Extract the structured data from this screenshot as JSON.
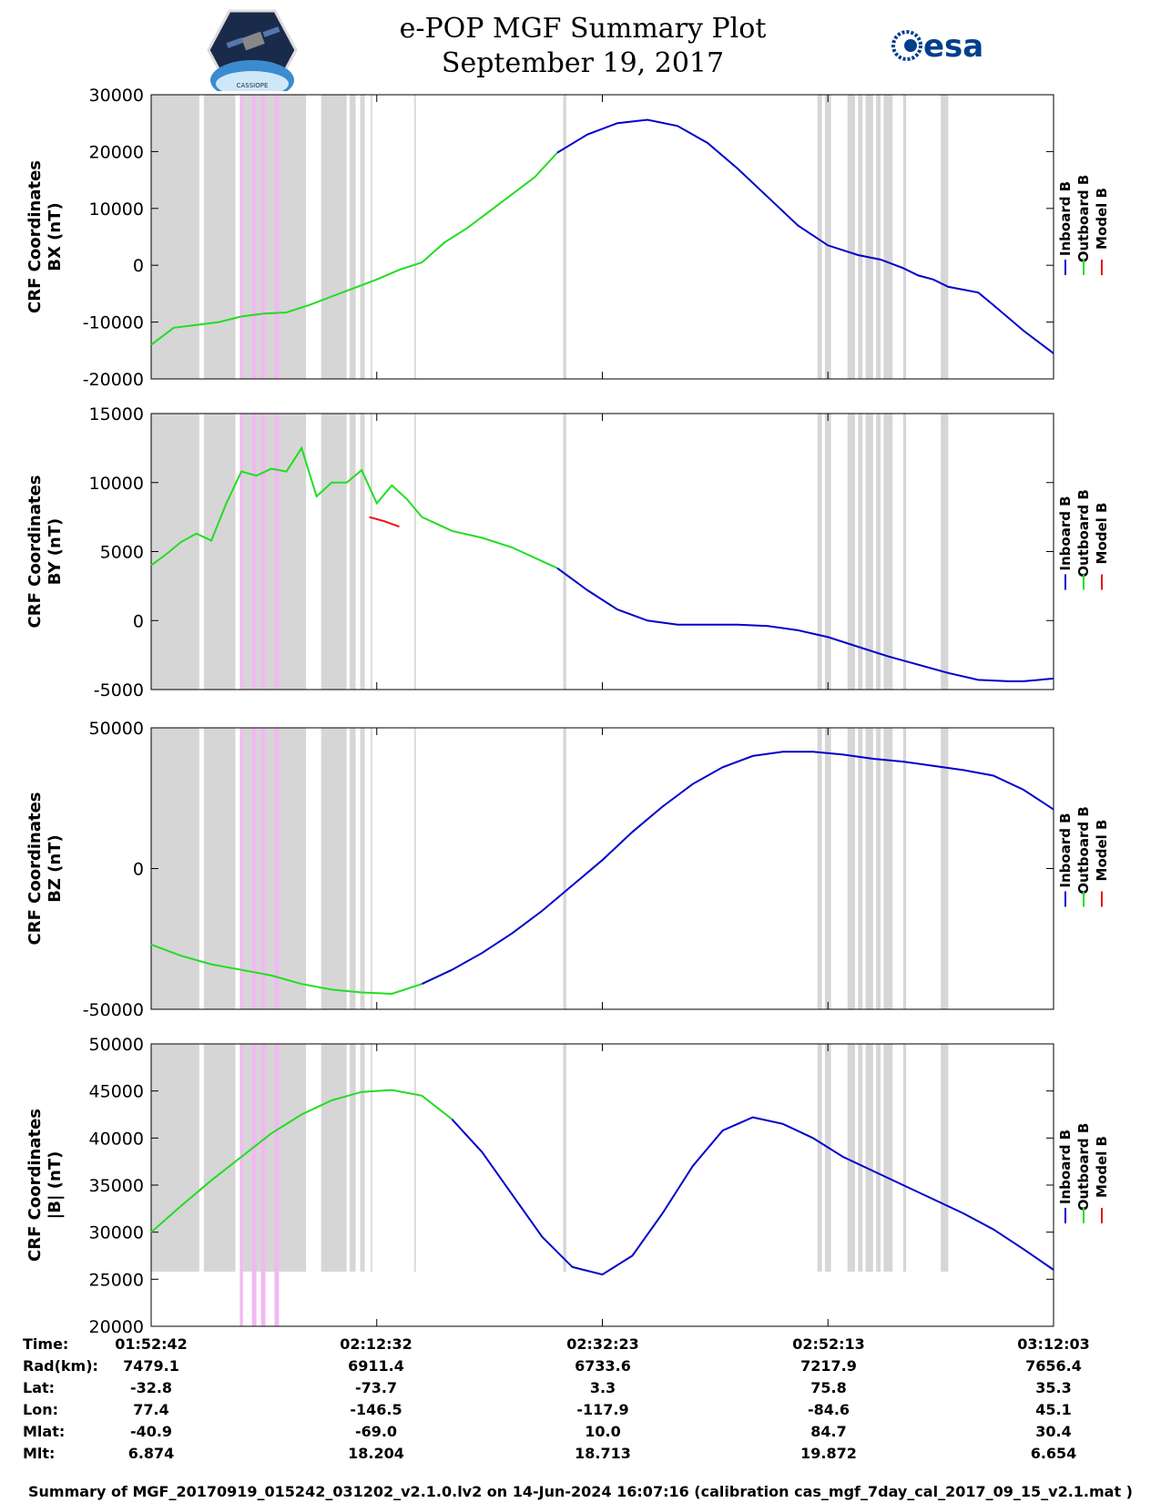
{
  "header": {
    "title": "e-POP MGF Summary Plot",
    "date": "September 19, 2017",
    "logo_left_text": "CASSIOPE",
    "logo_right_text": "esa"
  },
  "colors": {
    "inboard": "#0000cc",
    "outboard": "#22dd22",
    "model": "#ee1111",
    "gray_band": "#d6d6d6",
    "pink_band": "#f2b8f2"
  },
  "legend": [
    "Inboard B",
    "Outboard B",
    "Model B"
  ],
  "chart_data": [
    {
      "type": "line",
      "ylabel_line1": "CRF Coordinates",
      "ylabel_line2": "BX (nT)",
      "ylim": [
        -20000,
        30000
      ],
      "yticks": [
        -20000,
        -10000,
        0,
        10000,
        20000,
        30000
      ],
      "ytick_labels": [
        "-20000",
        "-10000",
        "0",
        "10000",
        "20000",
        "30000"
      ],
      "series": [
        {
          "name": "Outboard B",
          "color_key": "outboard",
          "x": [
            0,
            1.5,
            3,
            4.5,
            6,
            7.5,
            9,
            10.5,
            12,
            13.5,
            15,
            16.5,
            18,
            19.5,
            21,
            22.5,
            24,
            25.5,
            27
          ],
          "y": [
            -14000,
            -11000,
            -10500,
            -10000,
            -9000,
            -8500,
            -8300,
            -7000,
            -5500,
            -4000,
            -2500,
            -800,
            500,
            4000,
            6500,
            9500,
            12500,
            15500,
            19800
          ]
        },
        {
          "name": "Inboard B",
          "color_key": "inboard",
          "x": [
            27,
            29,
            31,
            33,
            35,
            37,
            39,
            41,
            43,
            45,
            47,
            48.5,
            49,
            50,
            51,
            52,
            53,
            54,
            55,
            56,
            58,
            60
          ],
          "y": [
            19800,
            23000,
            25000,
            25600,
            24500,
            21500,
            17000,
            12000,
            7000,
            3500,
            1800,
            1000,
            500,
            -500,
            -1800,
            -2500,
            -3800,
            -4300,
            -4800,
            -7000,
            -11500,
            -15500
          ]
        }
      ]
    },
    {
      "type": "line",
      "ylabel_line1": "CRF Coordinates",
      "ylabel_line2": "BY (nT)",
      "ylim": [
        -5000,
        15000
      ],
      "yticks": [
        -5000,
        0,
        5000,
        10000,
        15000
      ],
      "ytick_labels": [
        "-5000",
        "0",
        "5000",
        "10000",
        "15000"
      ],
      "series": [
        {
          "name": "Outboard B",
          "color_key": "outboard",
          "x": [
            0,
            1,
            2,
            3,
            4,
            5,
            6,
            7,
            8,
            9,
            10,
            11,
            12,
            13,
            14,
            15,
            16,
            17,
            18,
            19,
            20,
            22,
            24,
            27
          ],
          "y": [
            4000,
            4800,
            5700,
            6300,
            5800,
            8500,
            10800,
            10500,
            11000,
            10800,
            12500,
            9000,
            10000,
            10000,
            10900,
            8500,
            9800,
            8800,
            7500,
            7000,
            6500,
            6000,
            5300,
            3800
          ]
        },
        {
          "name": "Inboard B",
          "color_key": "inboard",
          "x": [
            27,
            29,
            31,
            33,
            35,
            37,
            39,
            41,
            43,
            45,
            47,
            49,
            51,
            53,
            55,
            57,
            58,
            60
          ],
          "y": [
            3800,
            2200,
            800,
            0,
            -300,
            -300,
            -300,
            -400,
            -700,
            -1200,
            -1900,
            -2600,
            -3200,
            -3800,
            -4300,
            -4400,
            -4400,
            -4200
          ]
        },
        {
          "name": "Model B",
          "color_key": "model",
          "x": [
            14.5,
            15.5,
            16.5
          ],
          "y": [
            7500,
            7200,
            6800
          ]
        }
      ]
    },
    {
      "type": "line",
      "ylabel_line1": "CRF Coordinates",
      "ylabel_line2": "BZ (nT)",
      "ylim": [
        -50000,
        50000
      ],
      "yticks": [
        -50000,
        0,
        50000
      ],
      "ytick_labels": [
        "-50000",
        "0",
        "50000"
      ],
      "series": [
        {
          "name": "Outboard B",
          "color_key": "outboard",
          "x": [
            0,
            2,
            4,
            6,
            8,
            10,
            12,
            14,
            16,
            18
          ],
          "y": [
            -27000,
            -31000,
            -34000,
            -36000,
            -38000,
            -41000,
            -43000,
            -44000,
            -44500,
            -41000
          ]
        },
        {
          "name": "Inboard B",
          "color_key": "inboard",
          "x": [
            18,
            20,
            22,
            24,
            26,
            28,
            30,
            32,
            34,
            36,
            38,
            40,
            42,
            44,
            46,
            48,
            50,
            52,
            54,
            56,
            58,
            60
          ],
          "y": [
            -41000,
            -36000,
            -30000,
            -23000,
            -15000,
            -6000,
            3000,
            13000,
            22000,
            30000,
            36000,
            40000,
            41500,
            41500,
            40500,
            39000,
            38000,
            36500,
            35000,
            33000,
            28000,
            21000
          ]
        }
      ]
    },
    {
      "type": "line",
      "ylabel_line1": "CRF Coordinates",
      "ylabel_line2": "|B| (nT)",
      "ylim": [
        20000,
        50000
      ],
      "yticks": [
        20000,
        25000,
        30000,
        35000,
        40000,
        45000,
        50000
      ],
      "ytick_labels": [
        "20000",
        "25000",
        "30000",
        "35000",
        "40000",
        "45000",
        "50000"
      ],
      "series": [
        {
          "name": "Outboard B",
          "color_key": "outboard",
          "x": [
            0,
            2,
            4,
            6,
            8,
            10,
            12,
            14,
            16,
            18,
            20
          ],
          "y": [
            30000,
            32800,
            35500,
            38000,
            40500,
            42500,
            44000,
            44900,
            45100,
            44500,
            42000
          ]
        },
        {
          "name": "Inboard B",
          "color_key": "inboard",
          "x": [
            20,
            22,
            24,
            26,
            28,
            30,
            32,
            34,
            36,
            38,
            40,
            42,
            44,
            46,
            48,
            50,
            52,
            54,
            56,
            58,
            60
          ],
          "y": [
            42000,
            38500,
            34000,
            29500,
            26300,
            25500,
            27500,
            32000,
            37000,
            40800,
            42200,
            41500,
            40000,
            38000,
            36500,
            35000,
            33500,
            32000,
            30300,
            28200,
            26000
          ]
        }
      ]
    }
  ],
  "x_axis": {
    "range_minutes": [
      0,
      60
    ],
    "tick_minutes": [
      0,
      15,
      30,
      45,
      60
    ]
  },
  "shading": {
    "gray_bands_minutes": [
      [
        0,
        3.2
      ],
      [
        3.5,
        5.6
      ],
      [
        5.9,
        10.3
      ],
      [
        11.3,
        13.0
      ],
      [
        13.2,
        13.6
      ],
      [
        13.9,
        14.2
      ],
      [
        14.6,
        14.7
      ],
      [
        17.5,
        17.6
      ],
      [
        27.4,
        27.6
      ],
      [
        44.3,
        44.6
      ],
      [
        44.8,
        45.2
      ],
      [
        46.3,
        46.8
      ],
      [
        47.0,
        47.3
      ],
      [
        47.5,
        48.0
      ],
      [
        48.2,
        48.5
      ],
      [
        48.7,
        49.3
      ],
      [
        50.0,
        50.2
      ],
      [
        52.5,
        53.0
      ]
    ],
    "pink_bands_minutes": [
      [
        5.9,
        6.1
      ],
      [
        6.7,
        7.0
      ],
      [
        7.3,
        7.6
      ],
      [
        8.2,
        8.5
      ]
    ]
  },
  "info_table": {
    "labels": [
      "Time:",
      "Rad(km):",
      "Lat:",
      "Lon:",
      "Mlat:",
      "Mlt:"
    ],
    "columns": [
      [
        "01:52:42",
        "7479.1",
        "-32.8",
        "77.4",
        "-40.9",
        "6.874"
      ],
      [
        "02:12:32",
        "6911.4",
        "-73.7",
        "-146.5",
        "-69.0",
        "18.204"
      ],
      [
        "02:32:23",
        "6733.6",
        "3.3",
        "-117.9",
        "10.0",
        "18.713"
      ],
      [
        "02:52:13",
        "7217.9",
        "75.8",
        "-84.6",
        "84.7",
        "19.872"
      ],
      [
        "03:12:03",
        "7656.4",
        "35.3",
        "45.1",
        "30.4",
        "6.654"
      ]
    ]
  },
  "footer": "Summary of MGF_20170919_015242_031202_v2.1.0.lv2 on 14-Jun-2024 16:07:16 (calibration cas_mgf_7day_cal_2017_09_15_v2.1.mat )"
}
